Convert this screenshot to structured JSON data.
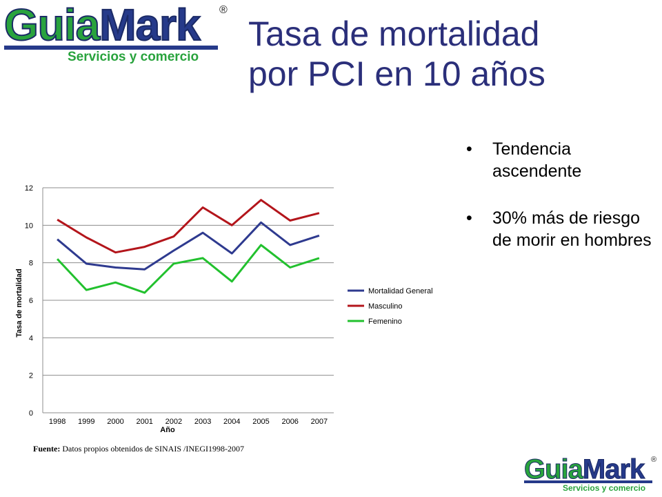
{
  "logo": {
    "word_left": "Guia",
    "word_right": "Mark",
    "registered": "®",
    "tagline": "Servicios y comercio"
  },
  "title_lines": [
    "Tasa de mortalidad",
    "por PCI en 10 años"
  ],
  "bullets": [
    {
      "marker": "•",
      "text": "Tendencia ascendente"
    },
    {
      "marker": "•",
      "text": "30% más de riesgo de morir en hombres"
    }
  ],
  "source": {
    "label": "Fuente:",
    "text": "Datos propios obtenidos de SINAIS /INEGI1998-2007"
  },
  "chart_data": {
    "type": "line",
    "title": "",
    "xlabel": "Año",
    "ylabel": "Tasa de mortalidad",
    "x": [
      "1998",
      "1999",
      "2000",
      "2001",
      "2002",
      "2003",
      "2004",
      "2005",
      "2006",
      "2007"
    ],
    "ylim": [
      0,
      12
    ],
    "yticks": [
      0,
      2,
      4,
      6,
      8,
      10,
      12
    ],
    "grid": "horizontal",
    "legend": "right",
    "series": [
      {
        "name": "Mortalidad General",
        "color": "#2e3a8f",
        "values": [
          9.25,
          7.95,
          7.75,
          7.65,
          8.65,
          9.6,
          8.5,
          10.15,
          8.95,
          9.45
        ]
      },
      {
        "name": "Masculino",
        "color": "#b3151b",
        "values": [
          10.3,
          9.35,
          8.55,
          8.85,
          9.4,
          10.95,
          10.0,
          11.35,
          10.25,
          10.65
        ]
      },
      {
        "name": "Femenino",
        "color": "#22c12e",
        "values": [
          8.2,
          6.55,
          6.95,
          6.4,
          7.95,
          8.25,
          7.0,
          8.95,
          7.75,
          8.25
        ]
      }
    ]
  }
}
